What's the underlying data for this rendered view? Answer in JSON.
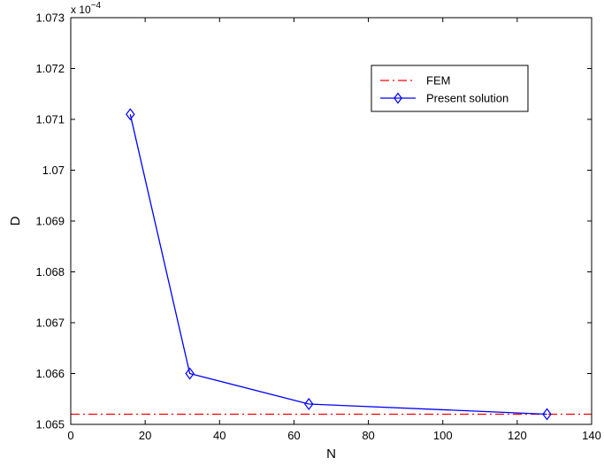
{
  "chart_data": {
    "type": "line",
    "xlabel": "N",
    "ylabel": "D",
    "xlim": [
      0,
      140
    ],
    "ylim": [
      1.065,
      1.073
    ],
    "x_ticks": [
      0,
      20,
      40,
      60,
      80,
      100,
      120,
      140
    ],
    "y_ticks": [
      1.065,
      1.066,
      1.067,
      1.068,
      1.069,
      1.07,
      1.071,
      1.072,
      1.073
    ],
    "y_tick_labels": [
      "1.065",
      "1.066",
      "1.067",
      "1.068",
      "1.069",
      "1.07",
      "1.071",
      "1.072",
      "1.073"
    ],
    "y_multiplier": {
      "base": "x 10",
      "exponent": "−4"
    },
    "grid": false,
    "legend_position": "top-right",
    "series": [
      {
        "name": "FEM",
        "style": "dash-dot",
        "marker": "none",
        "color": "#ff0000",
        "x": [
          0,
          140
        ],
        "y": [
          1.0652,
          1.0652
        ]
      },
      {
        "name": "Present solution",
        "style": "solid",
        "marker": "diamond",
        "color": "#0000ff",
        "x": [
          16,
          32,
          64,
          128
        ],
        "y": [
          1.0711,
          1.066,
          1.0654,
          1.0652
        ]
      }
    ]
  }
}
